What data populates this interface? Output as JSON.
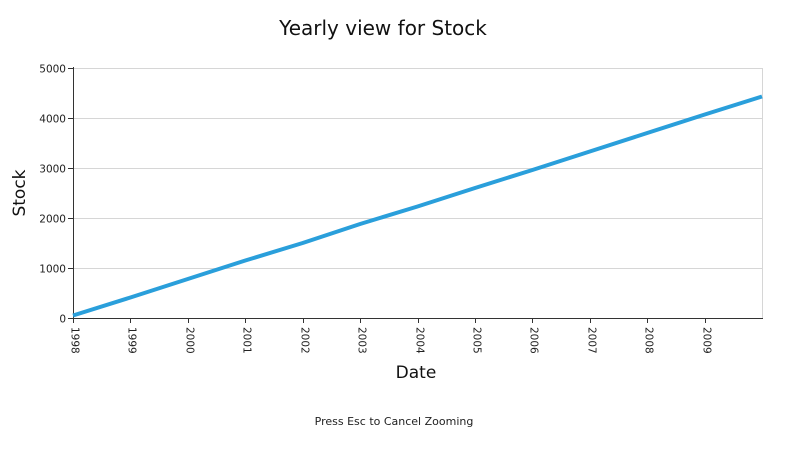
{
  "chart_data": {
    "type": "line",
    "title": "Yearly view for Stock",
    "xlabel": "Date",
    "ylabel": "Stock",
    "ylim": [
      0,
      5000
    ],
    "yticks": [
      0,
      1000,
      2000,
      3000,
      4000,
      5000
    ],
    "xlim": [
      "1998-01-01",
      "2009-12-31"
    ],
    "xticks": [
      "1998",
      "1999",
      "2000",
      "2001",
      "2002",
      "2003",
      "2004",
      "2005",
      "2006",
      "2007",
      "2008",
      "2009"
    ],
    "grid": true,
    "legend": "none",
    "series": [
      {
        "color": "#2a9fdb",
        "x": [
          "1998-01-01",
          "1999-01-01",
          "2000-01-01",
          "2001-01-01",
          "2002-01-01",
          "2003-01-01",
          "2004-01-01",
          "2005-01-01",
          "2006-01-01",
          "2007-01-01",
          "2008-01-01",
          "2009-01-01",
          "2009-12-31"
        ],
        "values": [
          50,
          410,
          780,
          1150,
          1500,
          1880,
          2230,
          2600,
          2960,
          3330,
          3700,
          4070,
          4430
        ]
      }
    ]
  },
  "footer": {
    "note": "Press Esc to Cancel Zooming"
  }
}
